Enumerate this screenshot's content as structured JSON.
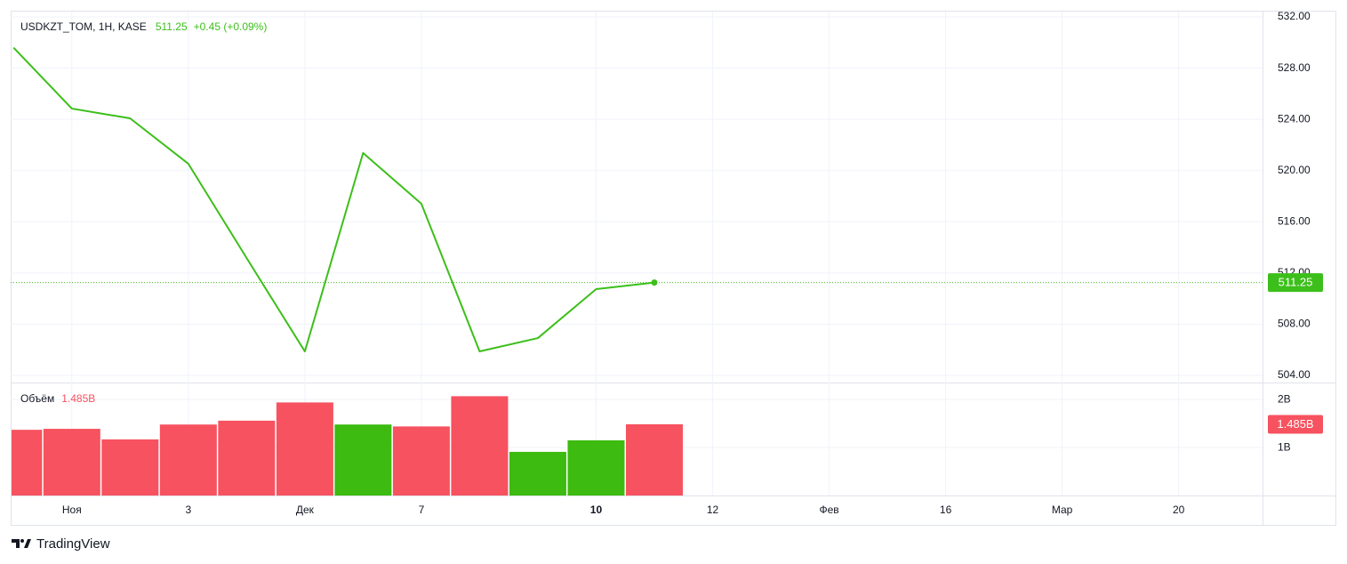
{
  "chart_data": [
    {
      "type": "line",
      "title": "USDKZT_TOM, 1H, KASE",
      "change": "+0.45 (+0.09%)",
      "x": [
        0,
        1,
        2,
        3,
        4,
        5,
        6,
        7,
        8,
        9,
        10,
        11
      ],
      "series": [
        {
          "name": "USDKZT_TOM",
          "color": "#3cbf1a",
          "values": [
            529.6,
            524.84,
            524.08,
            520.53,
            513.17,
            505.87,
            521.37,
            517.41,
            505.87,
            506.91,
            510.74,
            511.25
          ]
        }
      ],
      "xlim": [
        -0.05,
        21.44
      ],
      "xticks": [
        {
          "value": 1,
          "label": "Ноя"
        },
        3,
        {
          "value": 5,
          "label": "Дек"
        },
        7,
        10,
        12,
        {
          "value": 14,
          "label": "Фев"
        },
        16,
        {
          "value": 18,
          "label": "Мар"
        },
        20
      ],
      "ylim": [
        503.44,
        532.49
      ],
      "yticks": [
        {
          "value": 504,
          "label": "504.00"
        },
        {
          "value": 508,
          "label": "508.00"
        },
        {
          "value": 512,
          "label": "512.00"
        },
        {
          "value": 516,
          "label": "516.00"
        },
        {
          "value": 520,
          "label": "520.00"
        },
        {
          "value": 524,
          "label": "524.00"
        },
        {
          "value": 528,
          "label": "528.00"
        },
        {
          "value": 532,
          "label": "532.00"
        }
      ],
      "grid": true
    },
    {
      "type": "bar",
      "title": "Объём",
      "last_label": "1.485B",
      "x": [
        0,
        1,
        2,
        3,
        4,
        5,
        6,
        7,
        8,
        9,
        10,
        11
      ],
      "values": [
        1370000000,
        1390000000,
        1170000000,
        1480000000,
        1560000000,
        1940000000,
        1480000000,
        1440000000,
        2070000000,
        910000000,
        1150000000,
        1485000000
      ],
      "colors": [
        "#f7525f",
        "#f7525f",
        "#f7525f",
        "#f7525f",
        "#f7525f",
        "#f7525f",
        "#3dbb10",
        "#f7525f",
        "#f7525f",
        "#3dbb10",
        "#3dbb10",
        "#f7525f"
      ],
      "ylim": [
        0,
        2300000000
      ],
      "yticks": [
        {
          "value": 1000000000,
          "label": "1B"
        },
        {
          "value": 2000000000,
          "label": "2B"
        }
      ]
    }
  ],
  "footer": {
    "brand": "TradingView"
  }
}
